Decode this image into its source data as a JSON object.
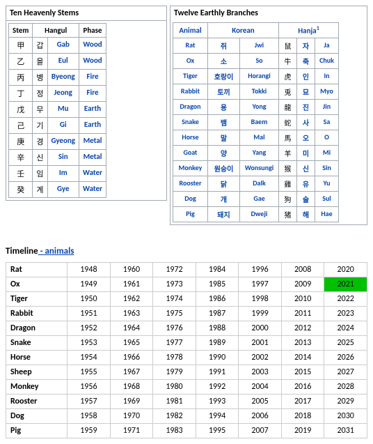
{
  "stems": {
    "title": "Ten Heavenly Stems",
    "headers": [
      "Stem",
      "Hangul",
      "Phase"
    ],
    "rows": [
      {
        "char": "甲",
        "hangul": "갑",
        "roman": "Gab",
        "phase": "Wood"
      },
      {
        "char": "乙",
        "hangul": "을",
        "roman": "Eul",
        "phase": "Wood"
      },
      {
        "char": "丙",
        "hangul": "병",
        "roman": "Byeong",
        "phase": "Fire"
      },
      {
        "char": "丁",
        "hangul": "정",
        "roman": "Jeong",
        "phase": "Fire"
      },
      {
        "char": "戊",
        "hangul": "무",
        "roman": "Mu",
        "phase": "Earth"
      },
      {
        "char": "己",
        "hangul": "기",
        "roman": "Gi",
        "phase": "Earth"
      },
      {
        "char": "庚",
        "hangul": "경",
        "roman": "Gyeong",
        "phase": "Metal"
      },
      {
        "char": "辛",
        "hangul": "신",
        "roman": "Sin",
        "phase": "Metal"
      },
      {
        "char": "壬",
        "hangul": "임",
        "roman": "Im",
        "phase": "Water"
      },
      {
        "char": "癸",
        "hangul": "계",
        "roman": "Gye",
        "phase": "Water"
      }
    ]
  },
  "branches": {
    "title": "Twelve Earthly Branches",
    "headers": {
      "animal": "Animal",
      "korean": "Korean",
      "hanja": "Hanja",
      "sup": "1"
    },
    "rows": [
      {
        "animal": "Rat",
        "han": "쥐",
        "rom": "Jwi",
        "cj": "鼠",
        "h2": "자",
        "rom2": "Ja"
      },
      {
        "animal": "Ox",
        "han": "소",
        "rom": "So",
        "cj": "牛",
        "h2": "축",
        "rom2": "Chuk"
      },
      {
        "animal": "Tiger",
        "han": "호랑이",
        "rom": "Horangi",
        "cj": "虎",
        "h2": "인",
        "rom2": "In"
      },
      {
        "animal": "Rabbit",
        "han": "토끼",
        "rom": "Tokki",
        "cj": "兎",
        "h2": "묘",
        "rom2": "Myo"
      },
      {
        "animal": "Dragon",
        "han": "용",
        "rom": "Yong",
        "cj": "龍",
        "h2": "진",
        "rom2": "Jin"
      },
      {
        "animal": "Snake",
        "han": "뱀",
        "rom": "Baem",
        "cj": "蛇",
        "h2": "사",
        "rom2": "Sa"
      },
      {
        "animal": "Horse",
        "han": "말",
        "rom": "Mal",
        "cj": "馬",
        "h2": "오",
        "rom2": "O"
      },
      {
        "animal": "Goat",
        "han": "양",
        "rom": "Yang",
        "cj": "羊",
        "h2": "미",
        "rom2": "Mi"
      },
      {
        "animal": "Monkey",
        "han": "원숭이",
        "rom": "Wonsungi",
        "cj": "猴",
        "h2": "신",
        "rom2": "Sin"
      },
      {
        "animal": "Rooster",
        "han": "닭",
        "rom": "Dalk",
        "cj": "雞",
        "h2": "유",
        "rom2": "Yu"
      },
      {
        "animal": "Dog",
        "han": "개",
        "rom": "Gae",
        "cj": "狗",
        "h2": "술",
        "rom2": "Sul"
      },
      {
        "animal": "Pig",
        "han": "돼지",
        "rom": "Dweji",
        "cj": "猪",
        "h2": "해",
        "rom2": "Hae"
      }
    ]
  },
  "timeline": {
    "title_prefix": "Timeline",
    "title_link": " - animals",
    "animals": [
      "Rat",
      "Ox",
      "Tiger",
      "Rabbit",
      "Dragon",
      "Snake",
      "Horse",
      "Sheep",
      "Monkey",
      "Rooster",
      "Dog",
      "Pig"
    ],
    "start_year": 1948,
    "cols": 7,
    "highlight_year": 2021
  }
}
